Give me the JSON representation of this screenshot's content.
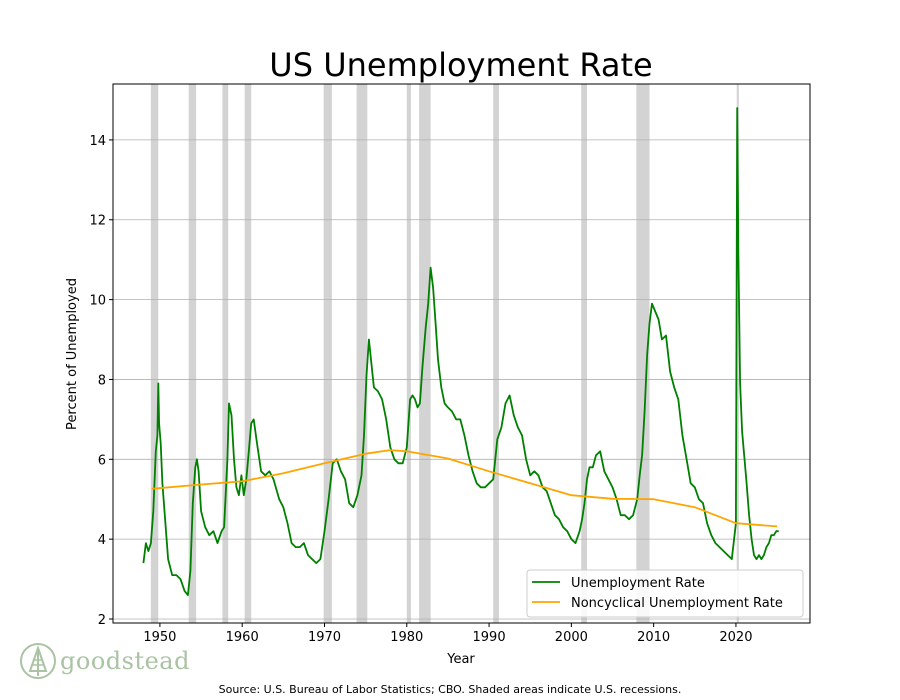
{
  "brand": {
    "name": "goodstead",
    "icon": "tree-icon",
    "color": "#a9c3a3"
  },
  "footer": {
    "source": "Source: U.S. Bureau of Labor Statistics; CBO. Shaded areas indicate U.S. recessions."
  },
  "chart_data": {
    "type": "line",
    "title": "US Unemployment Rate",
    "xlabel": "Year",
    "ylabel": "Percent of Unemployed",
    "xlim": [
      1944.3,
      2029
    ],
    "ylim": [
      1.9,
      15.4
    ],
    "xticks": [
      1950,
      1960,
      1970,
      1980,
      1990,
      2000,
      2010,
      2020
    ],
    "yticks": [
      2,
      4,
      6,
      8,
      10,
      12,
      14
    ],
    "grid": "y",
    "legend": "bottom-right",
    "recessions": [
      [
        1948.9,
        1949.8
      ],
      [
        1953.5,
        1954.4
      ],
      [
        1957.6,
        1958.3
      ],
      [
        1960.3,
        1961.1
      ],
      [
        1969.9,
        1970.9
      ],
      [
        1973.9,
        1975.2
      ],
      [
        1980.0,
        1980.5
      ],
      [
        1981.5,
        1982.9
      ],
      [
        1990.5,
        1991.2
      ],
      [
        2001.2,
        2001.9
      ],
      [
        2007.9,
        2009.5
      ],
      [
        2020.1,
        2020.35
      ]
    ],
    "series": [
      {
        "name": "Unemployment Rate",
        "color": "#008000",
        "x": [
          1948.0,
          1948.3,
          1948.6,
          1948.9,
          1949.2,
          1949.5,
          1949.7,
          1949.8,
          1949.9,
          1950.1,
          1950.3,
          1950.6,
          1951.0,
          1951.5,
          1952.0,
          1952.5,
          1953.0,
          1953.4,
          1953.7,
          1954.0,
          1954.3,
          1954.5,
          1954.7,
          1955.0,
          1955.5,
          1956.0,
          1956.5,
          1957.0,
          1957.5,
          1957.8,
          1958.2,
          1958.4,
          1958.7,
          1959.0,
          1959.3,
          1959.6,
          1959.9,
          1960.2,
          1960.5,
          1960.8,
          1961.1,
          1961.4,
          1961.8,
          1962.3,
          1962.8,
          1963.3,
          1963.8,
          1964.5,
          1965.0,
          1965.5,
          1966.0,
          1966.5,
          1967.0,
          1967.5,
          1968.0,
          1968.5,
          1969.0,
          1969.5,
          1970.0,
          1970.5,
          1971.0,
          1971.5,
          1972.0,
          1972.5,
          1973.0,
          1973.5,
          1974.0,
          1974.5,
          1974.8,
          1975.1,
          1975.4,
          1975.7,
          1976.0,
          1976.5,
          1977.0,
          1977.5,
          1978.0,
          1978.5,
          1979.0,
          1979.5,
          1980.0,
          1980.4,
          1980.7,
          1981.0,
          1981.3,
          1981.6,
          1981.9,
          1982.3,
          1982.6,
          1982.9,
          1983.2,
          1983.5,
          1983.8,
          1984.2,
          1984.6,
          1985.0,
          1985.5,
          1986.0,
          1986.5,
          1987.0,
          1987.5,
          1988.0,
          1988.5,
          1989.0,
          1989.5,
          1990.0,
          1990.5,
          1991.0,
          1991.5,
          1992.0,
          1992.5,
          1993.0,
          1993.5,
          1994.0,
          1994.5,
          1995.0,
          1995.5,
          1996.0,
          1996.5,
          1997.0,
          1997.5,
          1998.0,
          1998.5,
          1999.0,
          1999.5,
          2000.0,
          2000.5,
          2001.0,
          2001.3,
          2001.6,
          2001.9,
          2002.2,
          2002.6,
          2003.0,
          2003.5,
          2004.0,
          2004.5,
          2005.0,
          2005.5,
          2006.0,
          2006.5,
          2007.0,
          2007.5,
          2008.0,
          2008.3,
          2008.6,
          2008.9,
          2009.2,
          2009.5,
          2009.8,
          2010.2,
          2010.6,
          2011.0,
          2011.5,
          2012.0,
          2012.5,
          2013.0,
          2013.5,
          2014.0,
          2014.5,
          2015.0,
          2015.5,
          2016.0,
          2016.5,
          2017.0,
          2017.5,
          2018.0,
          2018.5,
          2019.0,
          2019.5,
          2020.0,
          2020.15,
          2020.3,
          2020.5,
          2020.75,
          2021.0,
          2021.3,
          2021.6,
          2021.9,
          2022.2,
          2022.5,
          2022.8,
          2023.1,
          2023.4,
          2023.7,
          2024.0,
          2024.3,
          2024.6,
          2024.9,
          2025.2
        ],
        "values": [
          3.4,
          3.9,
          3.7,
          3.9,
          4.7,
          6.2,
          6.6,
          7.9,
          6.9,
          6.4,
          5.4,
          4.6,
          3.5,
          3.1,
          3.1,
          3.0,
          2.7,
          2.6,
          3.2,
          4.9,
          5.8,
          6.0,
          5.7,
          4.7,
          4.3,
          4.1,
          4.2,
          3.9,
          4.2,
          4.3,
          6.0,
          7.4,
          7.1,
          6.0,
          5.3,
          5.1,
          5.6,
          5.1,
          5.5,
          6.2,
          6.9,
          7.0,
          6.4,
          5.7,
          5.6,
          5.7,
          5.5,
          5.0,
          4.8,
          4.4,
          3.9,
          3.8,
          3.8,
          3.9,
          3.6,
          3.5,
          3.4,
          3.5,
          4.2,
          5.0,
          5.9,
          6.0,
          5.7,
          5.5,
          4.9,
          4.8,
          5.1,
          5.6,
          6.6,
          8.1,
          9.0,
          8.4,
          7.8,
          7.7,
          7.5,
          7.0,
          6.3,
          6.0,
          5.9,
          5.9,
          6.3,
          7.5,
          7.6,
          7.5,
          7.3,
          7.4,
          8.3,
          9.3,
          9.9,
          10.8,
          10.3,
          9.4,
          8.5,
          7.8,
          7.4,
          7.3,
          7.2,
          7.0,
          7.0,
          6.6,
          6.1,
          5.7,
          5.4,
          5.3,
          5.3,
          5.4,
          5.5,
          6.5,
          6.8,
          7.4,
          7.6,
          7.1,
          6.8,
          6.6,
          6.0,
          5.6,
          5.7,
          5.6,
          5.3,
          5.2,
          4.9,
          4.6,
          4.5,
          4.3,
          4.2,
          4.0,
          3.9,
          4.2,
          4.5,
          4.9,
          5.5,
          5.8,
          5.8,
          6.1,
          6.2,
          5.7,
          5.5,
          5.3,
          5.0,
          4.6,
          4.6,
          4.5,
          4.6,
          5.0,
          5.6,
          6.1,
          7.2,
          8.6,
          9.4,
          9.9,
          9.7,
          9.5,
          9.0,
          9.1,
          8.2,
          7.8,
          7.5,
          6.6,
          6.0,
          5.4,
          5.3,
          5.0,
          4.9,
          4.4,
          4.1,
          3.9,
          3.8,
          3.7,
          3.6,
          3.5,
          4.4,
          14.8,
          11.1,
          7.9,
          6.7,
          6.1,
          5.4,
          4.6,
          4.0,
          3.6,
          3.5,
          3.6,
          3.5,
          3.6,
          3.8,
          3.9,
          4.1,
          4.1,
          4.2,
          4.2
        ]
      },
      {
        "name": "Noncyclical Unemployment Rate",
        "color": "#ffa500",
        "x": [
          1949,
          1955,
          1960,
          1965,
          1970,
          1975,
          1978,
          1980,
          1985,
          1990,
          1995,
          2000,
          2005,
          2010,
          2015,
          2020,
          2025
        ],
        "values": [
          5.26,
          5.37,
          5.45,
          5.65,
          5.9,
          6.14,
          6.23,
          6.2,
          6.02,
          5.7,
          5.4,
          5.1,
          5.01,
          5.0,
          4.8,
          4.4,
          4.32
        ]
      }
    ]
  }
}
